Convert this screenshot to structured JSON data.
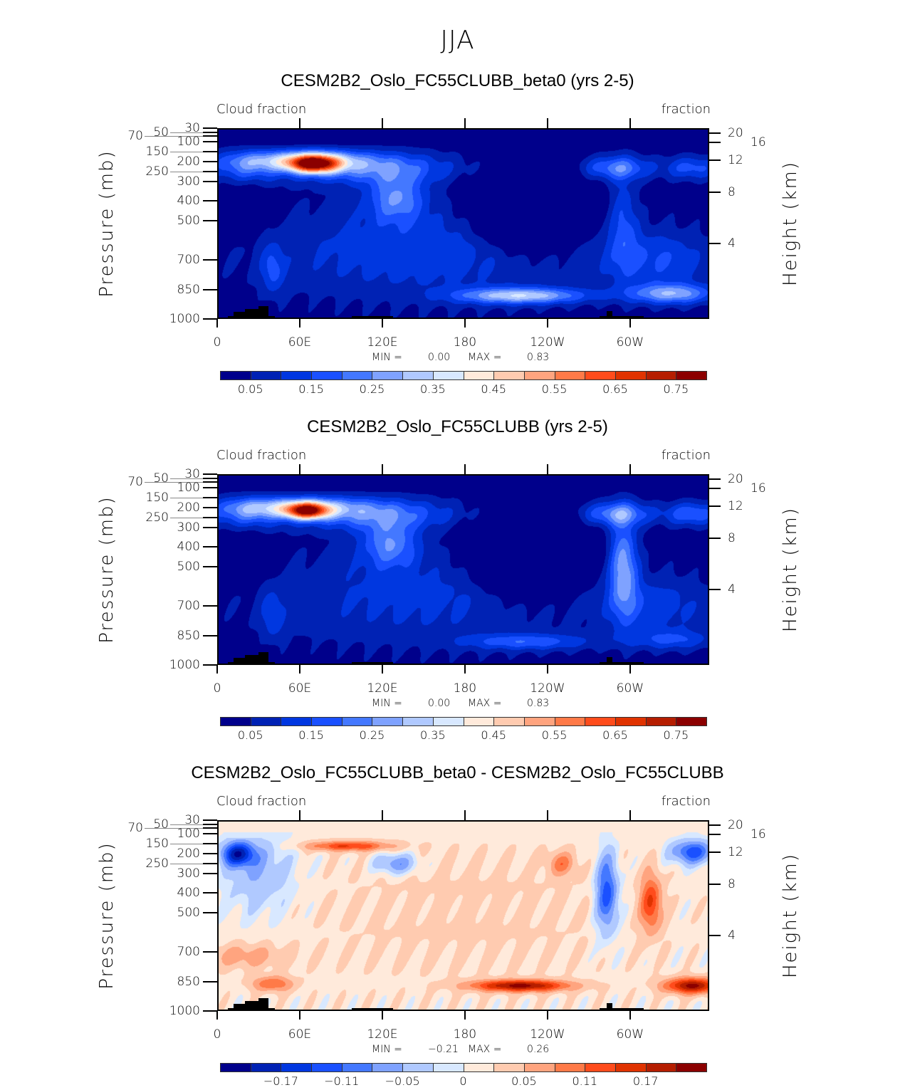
{
  "figure_title": "JJA",
  "chart_data": [
    {
      "type": "heatmap",
      "title": "CESM2B2_Oslo_FC55CLUBB_beta0 (yrs 2-5)",
      "left_label": "Cloud fraction",
      "right_label": "fraction",
      "ylabel": "Pressure (mb)",
      "ylabel_right": "Height (km)",
      "x_ticks": [
        "0",
        "60E",
        "120E",
        "180",
        "120W",
        "60W"
      ],
      "x_tick_values": [
        0,
        60,
        120,
        180,
        240,
        300
      ],
      "xlim": [
        0,
        357.5
      ],
      "y_ticks": [
        "30",
        "50",
        "70",
        "100",
        "150",
        "200",
        "250",
        "300",
        "400",
        "500",
        "700",
        "850",
        "1000"
      ],
      "y_tick_values": [
        30,
        50,
        70,
        100,
        150,
        200,
        250,
        300,
        400,
        500,
        700,
        850,
        1000
      ],
      "ylim": [
        30,
        1000
      ],
      "y_right_ticks": [
        "20",
        "16",
        "12",
        "8",
        "4"
      ],
      "y_right_tick_values_km": [
        20,
        16,
        12,
        8,
        4
      ],
      "min_label": "MIN =",
      "min_value": "0.00",
      "max_label": "MAX =",
      "max_value": "0.83",
      "levels": [
        0.05,
        0.1,
        0.15,
        0.2,
        0.25,
        0.3,
        0.35,
        0.4,
        0.45,
        0.5,
        0.55,
        0.6,
        0.65,
        0.7,
        0.75
      ],
      "colorbar_labels": [
        "0.05",
        "0.15",
        "0.25",
        "0.35",
        "0.45",
        "0.55",
        "0.65",
        "0.75"
      ],
      "base": 0.02,
      "field_blobs_lon_p_amp": [
        [
          70,
          210,
          0.6,
          18,
          45
        ],
        [
          60,
          190,
          0.25,
          45,
          50
        ],
        [
          110,
          230,
          0.2,
          60,
          80
        ],
        [
          130,
          380,
          0.2,
          20,
          120
        ],
        [
          20,
          230,
          0.15,
          25,
          80
        ],
        [
          150,
          650,
          0.12,
          120,
          250
        ],
        [
          220,
          880,
          0.3,
          45,
          40
        ],
        [
          330,
          870,
          0.25,
          30,
          50
        ],
        [
          290,
          230,
          0.2,
          25,
          60
        ],
        [
          295,
          500,
          0.12,
          10,
          250
        ],
        [
          345,
          230,
          0.15,
          20,
          60
        ],
        [
          320,
          700,
          0.12,
          40,
          150
        ],
        [
          225,
          450,
          -0.3,
          35,
          180
        ],
        [
          40,
          750,
          0.12,
          8,
          120
        ],
        [
          20,
          450,
          -0.1,
          15,
          120
        ]
      ]
    },
    {
      "type": "heatmap",
      "title": "CESM2B2_Oslo_FC55CLUBB (yrs 2-5)",
      "left_label": "Cloud fraction",
      "right_label": "fraction",
      "ylabel": "Pressure (mb)",
      "ylabel_right": "Height (km)",
      "x_ticks": [
        "0",
        "60E",
        "120E",
        "180",
        "120W",
        "60W"
      ],
      "x_tick_values": [
        0,
        60,
        120,
        180,
        240,
        300
      ],
      "xlim": [
        0,
        357.5
      ],
      "y_ticks": [
        "30",
        "50",
        "70",
        "100",
        "150",
        "200",
        "250",
        "300",
        "400",
        "500",
        "700",
        "850",
        "1000"
      ],
      "y_tick_values": [
        30,
        50,
        70,
        100,
        150,
        200,
        250,
        300,
        400,
        500,
        700,
        850,
        1000
      ],
      "ylim": [
        30,
        1000
      ],
      "y_right_ticks": [
        "20",
        "16",
        "12",
        "8",
        "4"
      ],
      "y_right_tick_values_km": [
        20,
        16,
        12,
        8,
        4
      ],
      "min_label": "MIN =",
      "min_value": "0.00",
      "max_label": "MAX =",
      "max_value": "0.83",
      "levels": [
        0.05,
        0.1,
        0.15,
        0.2,
        0.25,
        0.3,
        0.35,
        0.4,
        0.45,
        0.5,
        0.55,
        0.6,
        0.65,
        0.7,
        0.75
      ],
      "colorbar_labels": [
        "0.05",
        "0.15",
        "0.25",
        "0.35",
        "0.45",
        "0.55",
        "0.65",
        "0.75"
      ],
      "base": 0.02,
      "field_blobs_lon_p_amp": [
        [
          65,
          215,
          0.55,
          15,
          40
        ],
        [
          55,
          195,
          0.25,
          45,
          50
        ],
        [
          110,
          230,
          0.2,
          60,
          80
        ],
        [
          125,
          380,
          0.2,
          20,
          120
        ],
        [
          20,
          230,
          0.15,
          25,
          80
        ],
        [
          150,
          650,
          0.1,
          120,
          250
        ],
        [
          225,
          880,
          0.15,
          45,
          40
        ],
        [
          330,
          870,
          0.12,
          30,
          50
        ],
        [
          290,
          230,
          0.22,
          25,
          60
        ],
        [
          295,
          500,
          0.25,
          10,
          250
        ],
        [
          345,
          230,
          0.18,
          20,
          60
        ],
        [
          320,
          700,
          0.1,
          40,
          150
        ],
        [
          225,
          450,
          -0.3,
          35,
          180
        ],
        [
          40,
          750,
          0.1,
          8,
          120
        ],
        [
          20,
          450,
          -0.1,
          15,
          120
        ]
      ]
    },
    {
      "type": "heatmap",
      "title": "CESM2B2_Oslo_FC55CLUBB_beta0 - CESM2B2_Oslo_FC55CLUBB",
      "left_label": "Cloud fraction",
      "right_label": "fraction",
      "ylabel": "Pressure (mb)",
      "ylabel_right": "Height (km)",
      "x_ticks": [
        "0",
        "60E",
        "120E",
        "180",
        "120W",
        "60W"
      ],
      "x_tick_values": [
        0,
        60,
        120,
        180,
        240,
        300
      ],
      "xlim": [
        0,
        357.5
      ],
      "y_ticks": [
        "30",
        "50",
        "70",
        "100",
        "150",
        "200",
        "250",
        "300",
        "400",
        "500",
        "700",
        "850",
        "1000"
      ],
      "y_tick_values": [
        30,
        50,
        70,
        100,
        150,
        200,
        250,
        300,
        400,
        500,
        700,
        850,
        1000
      ],
      "ylim": [
        30,
        1000
      ],
      "y_right_ticks": [
        "20",
        "16",
        "12",
        "8",
        "4"
      ],
      "y_right_tick_values_km": [
        20,
        16,
        12,
        8,
        4
      ],
      "min_label": "MIN =",
      "min_value": "−0.21",
      "max_label": "MAX =",
      "max_value": "0.26",
      "levels": [
        -0.2,
        -0.17,
        -0.14,
        -0.11,
        -0.08,
        -0.05,
        -0.02,
        0,
        0.02,
        0.05,
        0.08,
        0.11,
        0.14,
        0.17,
        0.2
      ],
      "colorbar_labels": [
        "−0.17",
        "−0.11",
        "−0.05",
        "0",
        "0.05",
        "0.11",
        "0.17"
      ],
      "base": 0.01,
      "field_blobs_lon_p_amp": [
        [
          15,
          200,
          -0.18,
          12,
          60
        ],
        [
          30,
          300,
          -0.06,
          25,
          200
        ],
        [
          95,
          160,
          0.13,
          30,
          25
        ],
        [
          130,
          250,
          -0.09,
          15,
          50
        ],
        [
          220,
          870,
          0.2,
          35,
          30
        ],
        [
          345,
          870,
          0.2,
          20,
          40
        ],
        [
          315,
          450,
          0.13,
          8,
          150
        ],
        [
          283,
          400,
          -0.14,
          8,
          200
        ],
        [
          345,
          190,
          -0.14,
          15,
          60
        ],
        [
          40,
          860,
          0.1,
          15,
          40
        ],
        [
          20,
          720,
          0.06,
          30,
          60
        ],
        [
          250,
          250,
          0.08,
          10,
          60
        ],
        [
          180,
          500,
          0.02,
          100,
          300
        ]
      ]
    }
  ],
  "colors": [
    "#00008b",
    "#0022b4",
    "#0037e0",
    "#1a50ff",
    "#4478ff",
    "#7fa2ff",
    "#b0c9ff",
    "#d8e8ff",
    "#ffeadb",
    "#ffcbb0",
    "#ffa47f",
    "#ff7a48",
    "#ff4c1c",
    "#e03300",
    "#b51e00",
    "#8b0000"
  ],
  "topography_color": "#000000"
}
